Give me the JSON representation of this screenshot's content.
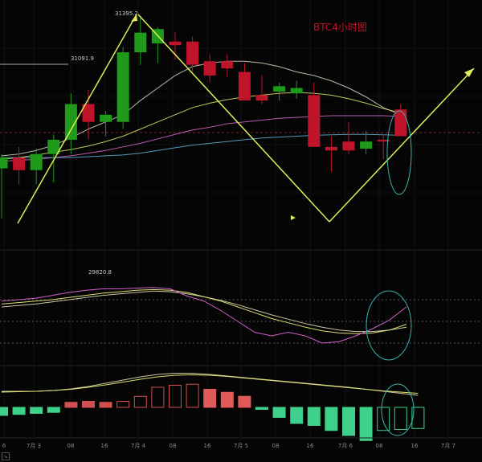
{
  "chart_data": {
    "type": "candlestick",
    "title": "BTC4小时图",
    "colors": {
      "up": "#1f9a1a",
      "down": "#c0142a",
      "title": "#c0142a",
      "hist_pos": "#3fd08c",
      "hist_neg": "#e05a5a"
    },
    "x_ticks": [
      "6",
      "7月 3",
      "08",
      "16",
      "7月 4",
      "08",
      "16",
      "7月 5",
      "08",
      "16",
      "7月 6",
      "08",
      "16",
      "7月 7"
    ],
    "candles": [
      {
        "o": 30540,
        "h": 30620,
        "l": 30260,
        "c": 30600
      },
      {
        "o": 30600,
        "h": 30660,
        "l": 30450,
        "c": 30530
      },
      {
        "o": 30530,
        "h": 30650,
        "l": 30450,
        "c": 30620
      },
      {
        "o": 30620,
        "h": 30730,
        "l": 30460,
        "c": 30700
      },
      {
        "o": 30700,
        "h": 30960,
        "l": 30620,
        "c": 30900
      },
      {
        "o": 30900,
        "h": 30980,
        "l": 30700,
        "c": 30800
      },
      {
        "o": 30800,
        "h": 30860,
        "l": 30720,
        "c": 30840
      },
      {
        "o": 30800,
        "h": 31220,
        "l": 30760,
        "c": 31190
      },
      {
        "o": 31190,
        "h": 31395,
        "l": 31120,
        "c": 31300
      },
      {
        "o": 31240,
        "h": 31330,
        "l": 31130,
        "c": 31320
      },
      {
        "o": 31250,
        "h": 31300,
        "l": 31150,
        "c": 31230
      },
      {
        "o": 31250,
        "h": 31280,
        "l": 31080,
        "c": 31120
      },
      {
        "o": 31140,
        "h": 31180,
        "l": 31020,
        "c": 31060
      },
      {
        "o": 31140,
        "h": 31180,
        "l": 31050,
        "c": 31100
      },
      {
        "o": 31080,
        "h": 31130,
        "l": 30920,
        "c": 30920
      },
      {
        "o": 30950,
        "h": 31060,
        "l": 30900,
        "c": 30920
      },
      {
        "o": 30970,
        "h": 31020,
        "l": 30920,
        "c": 31000
      },
      {
        "o": 30960,
        "h": 31030,
        "l": 30930,
        "c": 30990
      },
      {
        "o": 30950,
        "h": 31020,
        "l": 30660,
        "c": 30660
      },
      {
        "o": 30660,
        "h": 30720,
        "l": 30520,
        "c": 30640
      },
      {
        "o": 30690,
        "h": 30800,
        "l": 30620,
        "c": 30640
      },
      {
        "o": 30650,
        "h": 30750,
        "l": 30620,
        "c": 30690
      },
      {
        "o": 30700,
        "h": 30730,
        "l": 30590,
        "c": 30690
      },
      {
        "o": 30870,
        "h": 30900,
        "l": 30720,
        "c": 30720
      }
    ],
    "price_labels": {
      "high": "31395.2",
      "level": "31091.9",
      "osc": "29820.8"
    },
    "ma_lines": [
      {
        "name": "",
        "color": "#d8d8c0",
        "values": [
          30610,
          30620,
          30640,
          30670,
          30710,
          30760,
          30800,
          30840,
          30920,
          30990,
          31060,
          31110,
          31130,
          31140,
          31140,
          31130,
          31110,
          31080,
          31060,
          31030,
          30990,
          30940,
          30880,
          30840
        ]
      },
      {
        "name": "",
        "color": "#e8e86a",
        "values": [
          30590,
          30600,
          30615,
          30630,
          30645,
          30665,
          30690,
          30720,
          30760,
          30800,
          30840,
          30880,
          30905,
          30925,
          30940,
          30950,
          30960,
          30965,
          30960,
          30950,
          30930,
          30905,
          30875,
          30850
        ]
      },
      {
        "name": "",
        "color": "#d86ad0",
        "values": [
          30580,
          30585,
          30590,
          30600,
          30610,
          30625,
          30640,
          30660,
          30680,
          30705,
          30730,
          30755,
          30770,
          30790,
          30800,
          30810,
          30820,
          30825,
          30830,
          30835,
          30835,
          30835,
          30835,
          30830
        ]
      },
      {
        "name": "",
        "color": "#6ab0d8",
        "values": [
          30600,
          30600,
          30600,
          30600,
          30600,
          30605,
          30610,
          30615,
          30625,
          30640,
          30655,
          30670,
          30680,
          30690,
          30700,
          30710,
          30715,
          30720,
          30725,
          30728,
          30730,
          30730,
          30728,
          30725
        ]
      }
    ],
    "oscillator": {
      "fast": [
        0.78,
        0.8,
        0.82,
        0.86,
        0.9,
        0.93,
        0.95,
        0.95,
        0.96,
        0.97,
        0.95,
        0.85,
        0.78,
        0.65,
        0.5,
        0.35,
        0.3,
        0.35,
        0.3,
        0.2,
        0.22,
        0.3,
        0.4,
        0.52,
        0.7
      ],
      "slow": [
        0.74,
        0.76,
        0.78,
        0.8,
        0.83,
        0.86,
        0.89,
        0.91,
        0.93,
        0.94,
        0.93,
        0.9,
        0.84,
        0.78,
        0.7,
        0.62,
        0.54,
        0.48,
        0.42,
        0.37,
        0.34,
        0.33,
        0.34,
        0.38,
        0.46
      ],
      "mid": [
        0.7,
        0.72,
        0.74,
        0.77,
        0.8,
        0.83,
        0.86,
        0.88,
        0.9,
        0.92,
        0.91,
        0.88,
        0.84,
        0.79,
        0.73,
        0.66,
        0.59,
        0.53,
        0.47,
        0.42,
        0.38,
        0.36,
        0.36,
        0.38,
        0.42
      ],
      "levels": [
        0.8,
        0.5,
        0.2
      ]
    },
    "macd": {
      "hist": [
        -40,
        -35,
        -30,
        -25,
        25,
        30,
        25,
        30,
        55,
        100,
        110,
        115,
        90,
        75,
        55,
        -10,
        -50,
        -80,
        -90,
        -115,
        -140,
        -165,
        -115,
        -110,
        -105
      ],
      "hist_filled": [
        true,
        true,
        true,
        true,
        true,
        true,
        true,
        false,
        false,
        false,
        false,
        false,
        true,
        true,
        true,
        true,
        true,
        true,
        true,
        true,
        true,
        true,
        false,
        false,
        false
      ],
      "line1": [
        0.1,
        0.1,
        0.1,
        0.12,
        0.16,
        0.22,
        0.3,
        0.38,
        0.46,
        0.52,
        0.55,
        0.55,
        0.52,
        0.48,
        0.44,
        0.4,
        0.36,
        0.32,
        0.28,
        0.24,
        0.2,
        0.15,
        0.1,
        0.05,
        0.0
      ],
      "line2": [
        0.08,
        0.09,
        0.1,
        0.12,
        0.15,
        0.2,
        0.26,
        0.33,
        0.4,
        0.46,
        0.5,
        0.51,
        0.5,
        0.47,
        0.43,
        0.39,
        0.35,
        0.31,
        0.27,
        0.23,
        0.19,
        0.15,
        0.11,
        0.08,
        0.05
      ]
    },
    "annotations": {
      "arrow_path_note": "",
      "arrow_color": "#dfee55",
      "circle_color": "#3ab3b0"
    }
  }
}
